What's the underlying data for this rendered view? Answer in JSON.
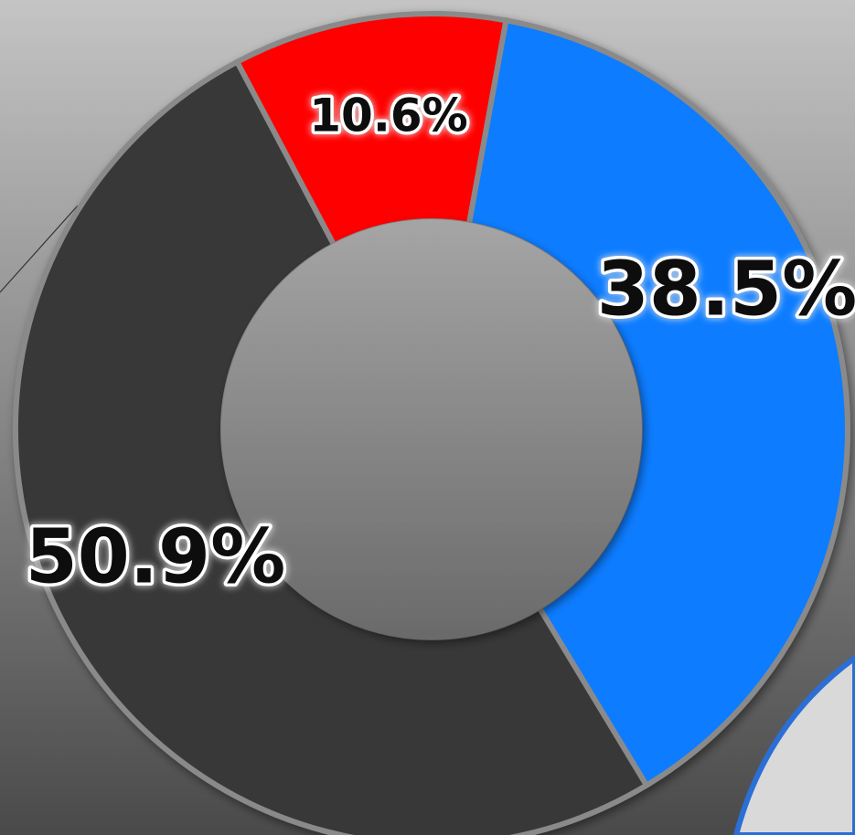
{
  "chart_data": {
    "type": "donut",
    "categories": [
      null,
      null,
      null
    ],
    "values": [
      38.5,
      50.9,
      10.6
    ],
    "value_labels": [
      "38.5%",
      "50.9%",
      "10.6%"
    ],
    "colors": [
      "#0a7bff",
      "#393939",
      "#ff0000"
    ]
  }
}
